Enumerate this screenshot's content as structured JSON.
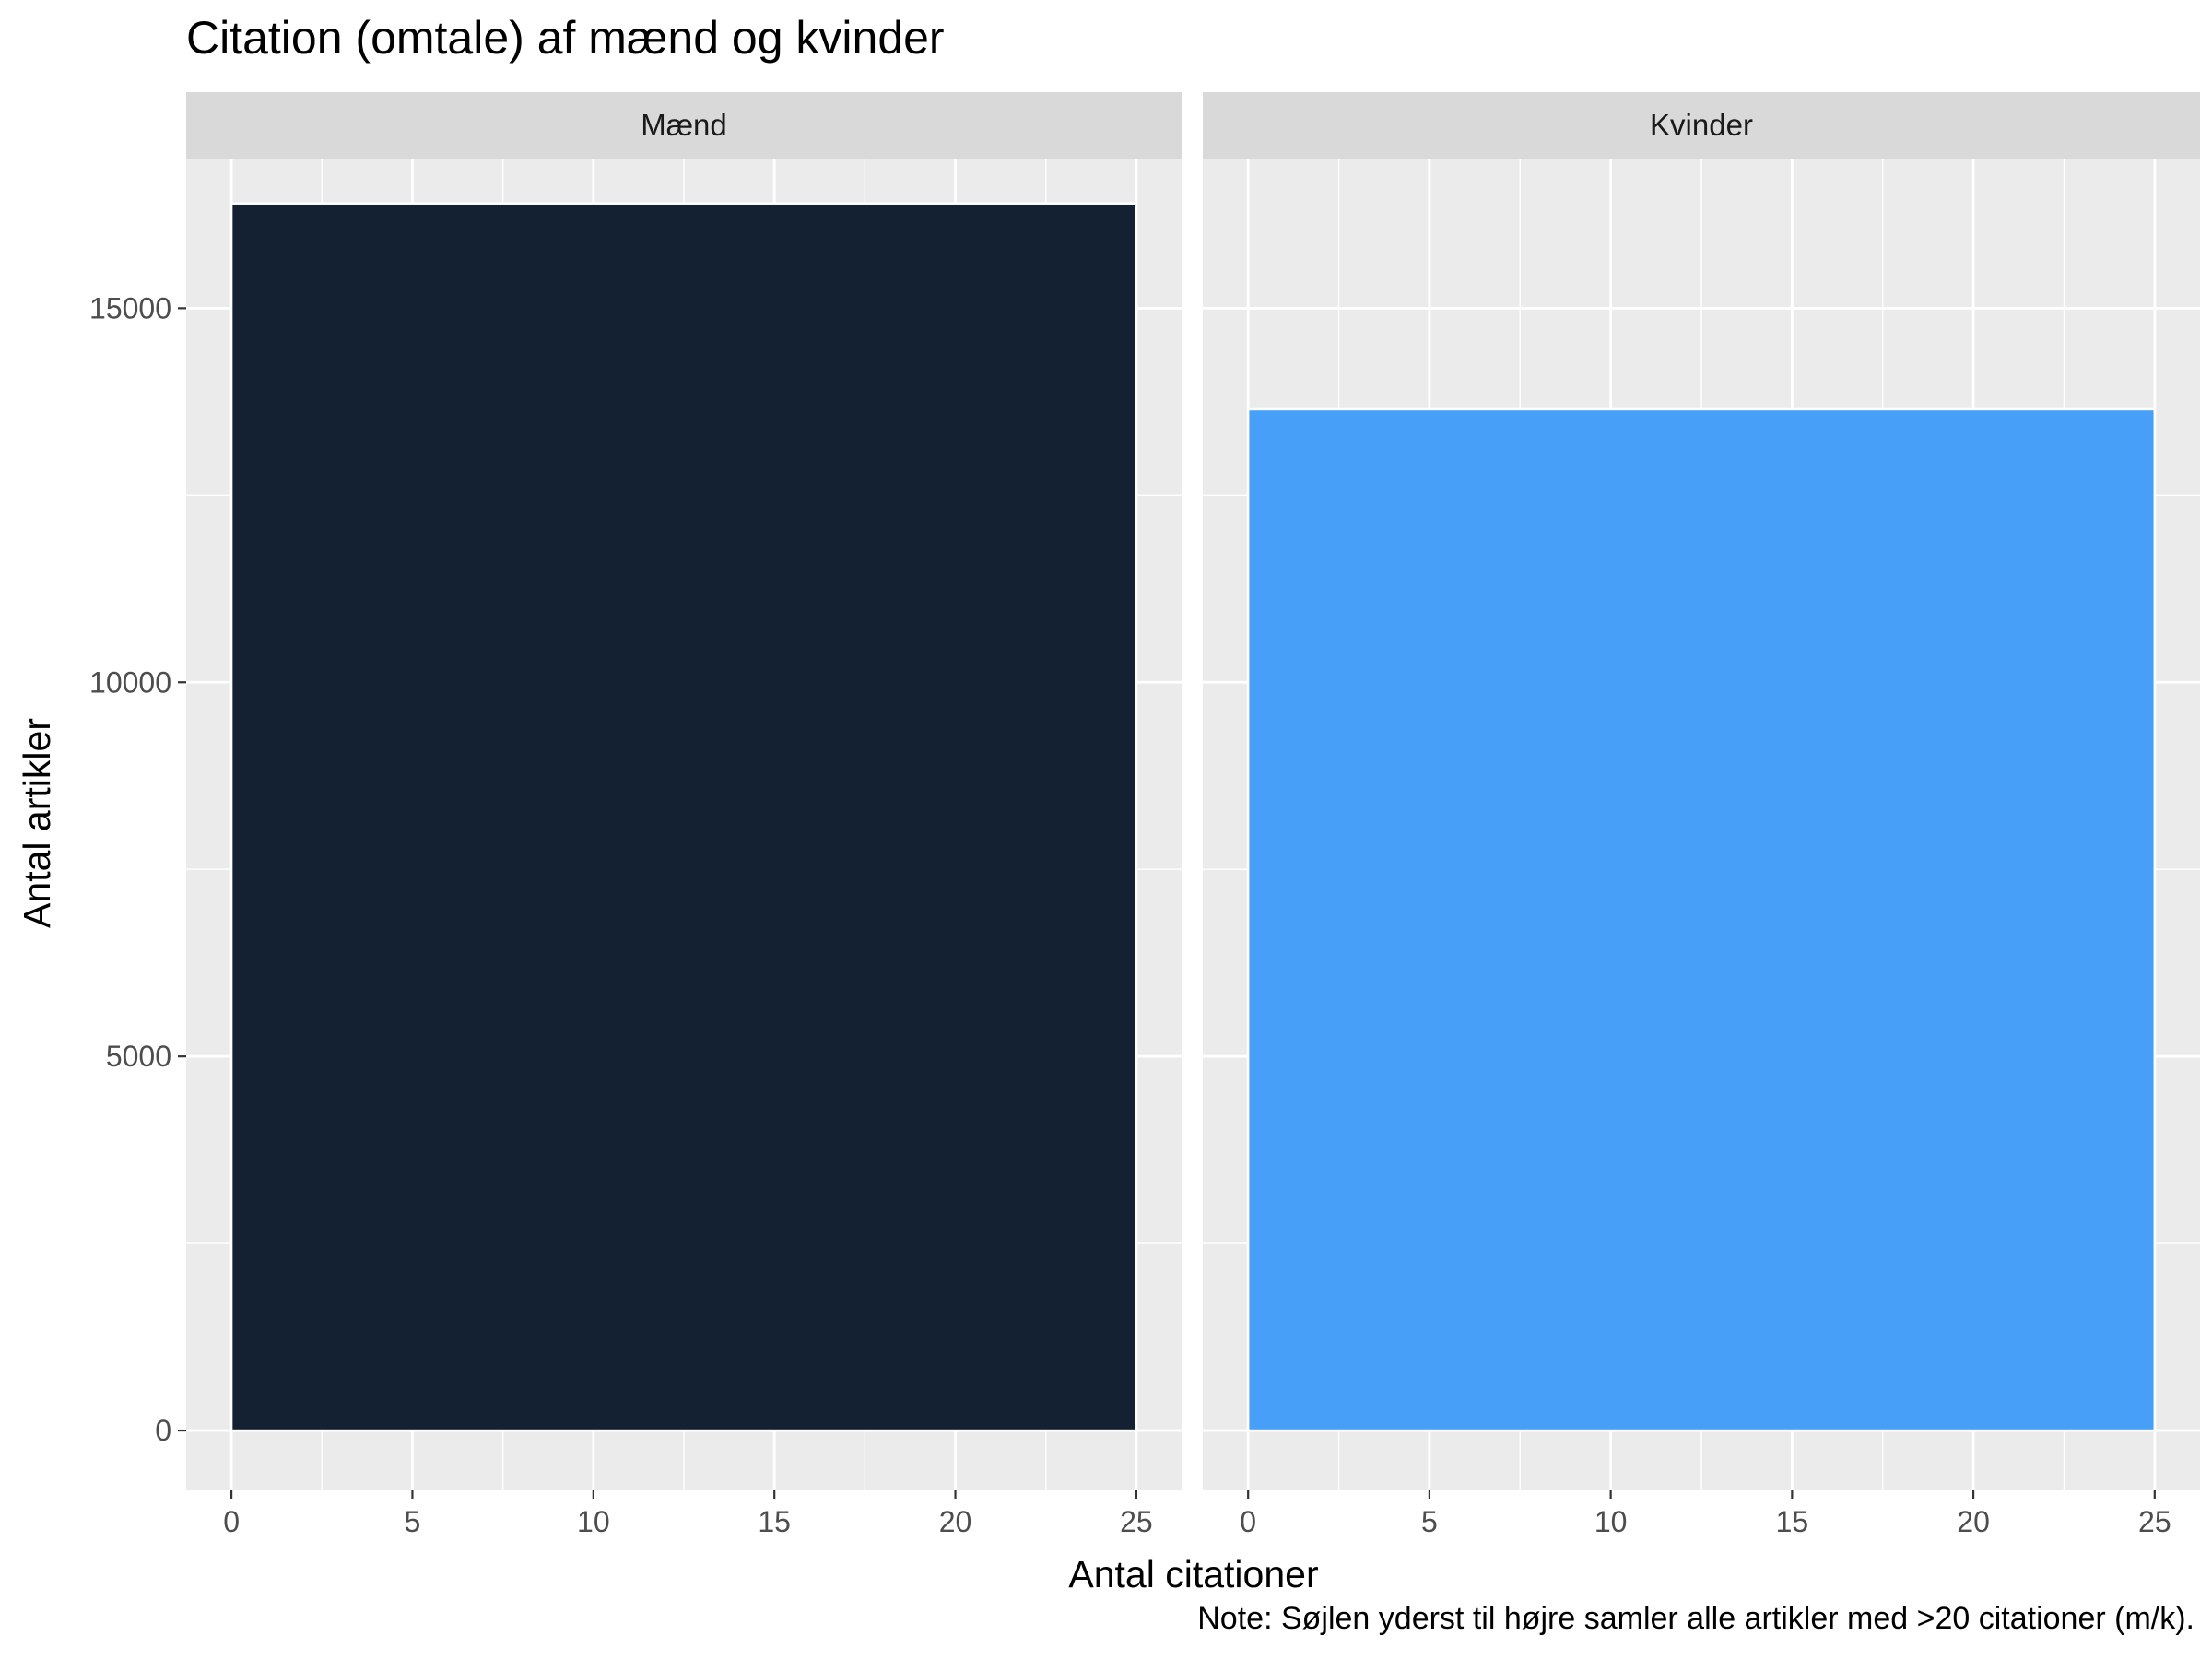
{
  "chart_data": {
    "type": "bar",
    "title": "Citation (omtale) af mænd og kvinder",
    "xlabel": "Antal citationer",
    "ylabel": "Antal artikler",
    "caption": "Note: Søjlen yderst til højre samler alle artikler med >20 citationer (m/k).",
    "xlim": [
      -1.25,
      26.25
    ],
    "ylim": [
      -800,
      17000
    ],
    "x_ticks": [
      0,
      5,
      10,
      15,
      20,
      25
    ],
    "x_tick_labels": [
      "0",
      "5",
      "10",
      "15",
      "20",
      "25"
    ],
    "y_ticks": [
      0,
      5000,
      10000,
      15000
    ],
    "y_tick_labels": [
      "0",
      "5000",
      "10000",
      "15000"
    ],
    "grid": true,
    "legend": "none",
    "panels": [
      {
        "name": "Mænd",
        "color": "#132133",
        "bars": [
          {
            "x_start": 0,
            "x_end": 25,
            "value": 16400
          }
        ]
      },
      {
        "name": "Kvinder",
        "color": "#479ff8",
        "bars": [
          {
            "x_start": 0,
            "x_end": 25,
            "value": 13650
          }
        ]
      }
    ]
  }
}
